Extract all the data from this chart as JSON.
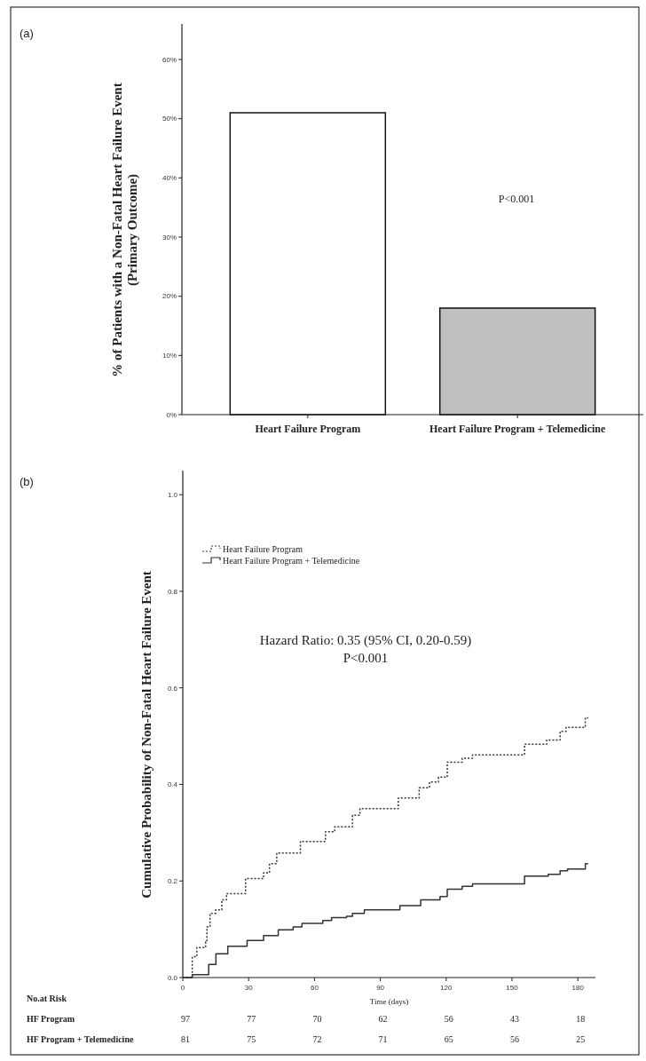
{
  "chart_data": [
    {
      "type": "bar",
      "ylabel": "% of Patients with a Non-Fatal Heart Failure Event\n(Primary Outcome)",
      "categories": [
        "Heart Failure Program",
        "Heart Failure Program + Telemedicine"
      ],
      "values": [
        51,
        18
      ],
      "colors": [
        "#ffffff",
        "#c0c0c0"
      ],
      "ylim": [
        0,
        66
      ],
      "yticks": [
        {
          "value": 0,
          "label": "0%"
        },
        {
          "value": 10,
          "label": "10%"
        },
        {
          "value": 20,
          "label": "20%"
        },
        {
          "value": 30,
          "label": "30%"
        },
        {
          "value": 40,
          "label": "40%"
        },
        {
          "value": 50,
          "label": "50%"
        },
        {
          "value": 60,
          "label": "60%"
        }
      ],
      "annotations": [
        "(a)",
        "P<0.001"
      ]
    },
    {
      "type": "step",
      "xlabel": "Time (days)",
      "ylabel": "Cumulative Probability of Non-Fatal Heart Failure Event",
      "xlim": [
        0,
        188
      ],
      "ylim": [
        0,
        1.05
      ],
      "xticks": [
        0,
        30,
        60,
        90,
        120,
        150,
        180
      ],
      "yticks": [
        {
          "value": 0,
          "label": "0.0"
        },
        {
          "value": 0.2,
          "label": "0.2"
        },
        {
          "value": 0.4,
          "label": "0.4"
        },
        {
          "value": 0.6,
          "label": "0.6"
        },
        {
          "value": 0.8,
          "label": "0.8"
        },
        {
          "value": 1,
          "label": "1.0"
        }
      ],
      "legend": "top left",
      "series": [
        {
          "name": "Heart Failure Program",
          "color": "#333333",
          "line_style": "dotted",
          "x": [
            0,
            4.3,
            6.4,
            10.4,
            11,
            12.4,
            15,
            17.8,
            19.9,
            28.6,
            36.8,
            39.5,
            42.8,
            53.6,
            65,
            69.2,
            77.3,
            80.7,
            98.2,
            107.7,
            112.4,
            116.5,
            120.5,
            127.3,
            132,
            155.7,
            165.8,
            171.9,
            174.6,
            183.4,
            184.7
          ],
          "values": [
            0,
            0.043,
            0.062,
            0.074,
            0.105,
            0.133,
            0.14,
            0.161,
            0.174,
            0.205,
            0.217,
            0.236,
            0.258,
            0.282,
            0.302,
            0.312,
            0.336,
            0.35,
            0.372,
            0.393,
            0.405,
            0.415,
            0.446,
            0.454,
            0.461,
            0.483,
            0.492,
            0.51,
            0.518,
            0.538,
            0.538
          ]
        },
        {
          "name": "Heart Failure Program + Telemedicine",
          "color": "#333333",
          "line_style": "solid",
          "x": [
            0,
            4.3,
            11.8,
            15.1,
            20.5,
            29.3,
            36.8,
            43.5,
            50.3,
            54.3,
            63.8,
            67.8,
            74.6,
            77.3,
            82.7,
            98.9,
            108.4,
            117.2,
            120.5,
            127.3,
            132,
            155.7,
            166.5,
            171.9,
            175.3,
            183.4,
            184.7
          ],
          "values": [
            0,
            0.006,
            0.027,
            0.049,
            0.065,
            0.077,
            0.087,
            0.099,
            0.105,
            0.112,
            0.118,
            0.124,
            0.127,
            0.133,
            0.14,
            0.149,
            0.161,
            0.168,
            0.183,
            0.189,
            0.194,
            0.21,
            0.214,
            0.221,
            0.225,
            0.236,
            0.236
          ]
        }
      ],
      "annotations": [
        "(b)",
        "Hazard Ratio: 0.35 (95% CI, 0.20-0.59)",
        "P<0.001",
        "No.at Risk",
        "HF Program",
        "97",
        "77",
        "70",
        "62",
        "56",
        "43",
        "18",
        "HF Program + Telemedicine",
        "81",
        "75",
        "72",
        "71",
        "65",
        "56",
        "25"
      ]
    }
  ]
}
